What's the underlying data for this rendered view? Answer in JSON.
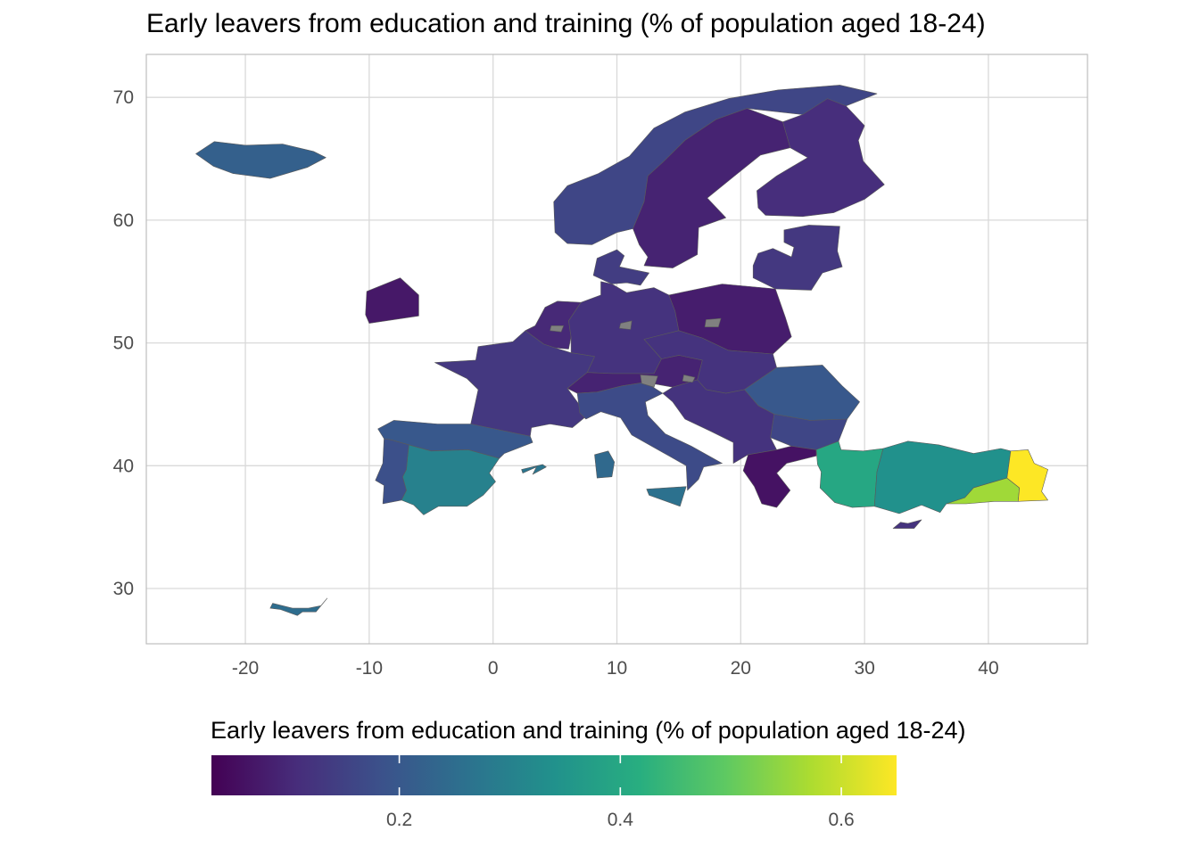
{
  "title": "Early leavers from education and training (% of population aged 18-24)",
  "colors": {
    "panel_border": "#bdbdbd",
    "grid": "#d9d9d9",
    "region_stroke": "#5a5a5a",
    "no_data": "#808080",
    "viridis": [
      "#440154",
      "#472d7b",
      "#3b528b",
      "#2c728e",
      "#21918c",
      "#28ae80",
      "#5ec962",
      "#addc30",
      "#fde725"
    ]
  },
  "chart_data": {
    "type": "choropleth map",
    "x_axis": {
      "range": [
        -28,
        48
      ],
      "ticks": [
        -20,
        -10,
        0,
        10,
        20,
        30,
        40
      ],
      "tick_labels": [
        "-20",
        "-10",
        "0",
        "10",
        "20",
        "30",
        "40"
      ]
    },
    "y_axis": {
      "range": [
        25.5,
        73.5
      ],
      "ticks": [
        30,
        40,
        50,
        60,
        70
      ],
      "tick_labels": [
        "30",
        "40",
        "50",
        "60",
        "70"
      ]
    },
    "grid": true,
    "legend": {
      "title": "Early leavers from education and training (% of population aged 18-24)",
      "position": "bottom",
      "range": [
        0.03,
        0.65
      ],
      "ticks": [
        0.2,
        0.4,
        0.6
      ],
      "tick_labels": [
        "0.2",
        "0.4",
        "0.6"
      ]
    },
    "regions": [
      {
        "name": "Iceland",
        "value": 0.22
      },
      {
        "name": "Norway",
        "value": 0.16
      },
      {
        "name": "Sweden",
        "value": 0.09
      },
      {
        "name": "Finland",
        "value": 0.11
      },
      {
        "name": "Baltic States",
        "value": 0.13
      },
      {
        "name": "Denmark",
        "value": 0.14
      },
      {
        "name": "Ireland",
        "value": 0.07
      },
      {
        "name": "Benelux",
        "value": 0.1
      },
      {
        "name": "Germany",
        "value": 0.12
      },
      {
        "name": "Poland",
        "value": 0.08
      },
      {
        "name": "France",
        "value": 0.13
      },
      {
        "name": "Switzerland and Austria",
        "value": 0.09
      },
      {
        "name": "Czechia, Slovakia and Hungary",
        "value": 0.12
      },
      {
        "name": "Romania",
        "value": 0.2
      },
      {
        "name": "Bulgaria",
        "value": 0.16
      },
      {
        "name": "Italy",
        "value": 0.17
      },
      {
        "name": "Sicily",
        "value": 0.26
      },
      {
        "name": "Sardinia",
        "value": 0.24
      },
      {
        "name": "Balkans",
        "value": 0.12
      },
      {
        "name": "Greece",
        "value": 0.06
      },
      {
        "name": "Spain North",
        "value": 0.2
      },
      {
        "name": "Spain Centre and South",
        "value": 0.3
      },
      {
        "name": "Portugal",
        "value": 0.18
      },
      {
        "name": "Balearic Islands",
        "value": 0.27
      },
      {
        "name": "Canary Islands",
        "value": 0.25
      },
      {
        "name": "Cyprus",
        "value": 0.12
      },
      {
        "name": "Turkey West",
        "value": 0.4
      },
      {
        "name": "Turkey Central",
        "value": 0.34
      },
      {
        "name": "Turkey South East",
        "value": 0.56
      },
      {
        "name": "Turkey East",
        "value": 0.65
      }
    ]
  }
}
